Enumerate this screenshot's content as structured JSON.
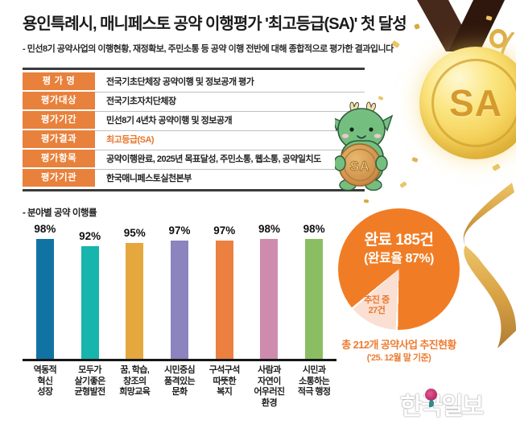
{
  "header": {
    "title": "용인특례시, 매니페스토 공약 이행평가 '최고등급(SA)' 첫 달성",
    "subtitle": "- 민선8기 공약사업의 이행현황, 재정확보, 주민소통 등 공약 이행 전반에 대해 종합적으로 평가한 결과입니다"
  },
  "summary_table": {
    "label_bg": "#E8813C",
    "highlight_color": "#E8752B",
    "rows": [
      {
        "label": "평 가 명",
        "value": "전국기초단체장 공약이행 및 정보공개 평가",
        "highlight": false
      },
      {
        "label": "평가대상",
        "value": "전국기초자치단체장",
        "highlight": false
      },
      {
        "label": "평가기간",
        "value": "민선8기 4년차 공약이행 및 정보공개",
        "highlight": false
      },
      {
        "label": "평가결과",
        "value": "최고등급(SA)",
        "highlight": true
      },
      {
        "label": "평가항목",
        "value": "공약이행완료, 2025년 목표달성, 주민소통, 웹소통, 공약일치도",
        "highlight": false
      },
      {
        "label": "평가기관",
        "value": "한국매니페스토실천본부",
        "highlight": false
      }
    ]
  },
  "chart_data": [
    {
      "type": "bar",
      "title": "- 분야별 공약 이행률",
      "unit": "%",
      "ylim": [
        0,
        100
      ],
      "values": [
        98,
        92,
        95,
        97,
        97,
        98,
        98
      ],
      "colors": [
        "#1173A4",
        "#17B5AB",
        "#E5A83E",
        "#8B84BE",
        "#EC8040",
        "#CE8BAE",
        "#8BBE63"
      ],
      "categories": [
        [
          "역동적",
          "혁신",
          "성장"
        ],
        [
          "모두가",
          "살기좋은",
          "균형발전"
        ],
        [
          "꿈, 학습,",
          "창조의",
          "희망교육"
        ],
        [
          "시민중심",
          "품격있는",
          "문화"
        ],
        [
          "구석구석",
          "따뜻한",
          "복지"
        ],
        [
          "사람과",
          "자연이",
          "어우러진",
          "환경"
        ],
        [
          "시민과",
          "소통하는",
          "적극 행정"
        ]
      ]
    },
    {
      "type": "pie",
      "title": "총 212개 공약사업 추진현황",
      "subtitle": "('25. 12월 말 기준)",
      "total": 212,
      "slices": [
        {
          "label": "완료",
          "count": 185,
          "pct": 87,
          "color": "#F07D26"
        },
        {
          "label": "추진 중",
          "count": 27,
          "pct": 13,
          "color": "#FBDFD2"
        }
      ],
      "center_label_line1": "완료 185건",
      "center_label_line2": "(완료율 87%)",
      "slice_label_line1": "추진 중",
      "slice_label_line2": "27건",
      "slice_label_color": "#E8792E",
      "caption_color": "#EE7C32"
    }
  ],
  "medal": {
    "grade": "SA"
  },
  "mascot": {
    "coin_text": "SA"
  },
  "watermark": {
    "text": "한국일보"
  }
}
